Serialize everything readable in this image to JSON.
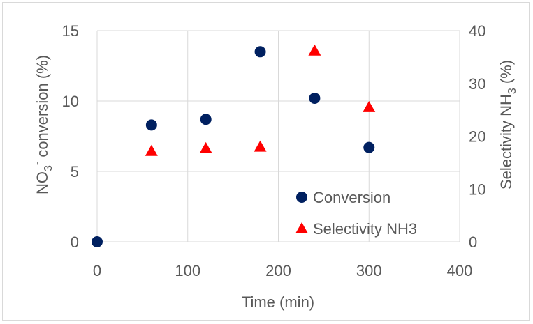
{
  "chart_data": {
    "type": "scatter",
    "x_axis": {
      "label": "Time (min)",
      "range": [
        0,
        400
      ],
      "ticks": [
        "0",
        "100",
        "200",
        "300",
        "400"
      ]
    },
    "y_axis_left": {
      "label_prefix": "NO",
      "label_sub": "3",
      "label_sup": "-",
      "label_suffix": " conversion (%)",
      "range": [
        0,
        15
      ],
      "ticks": [
        "0",
        "5",
        "10",
        "15"
      ]
    },
    "y_axis_right": {
      "label_prefix": "Selectivity NH",
      "label_sub": "3",
      "label_suffix": " (%)",
      "range": [
        0,
        40
      ],
      "ticks": [
        "0",
        "10",
        "20",
        "30",
        "40"
      ]
    },
    "grid": true,
    "legend_position": "bottom-right",
    "series": [
      {
        "name": "Conversion",
        "axis": "left",
        "marker": "circle",
        "color": "#002060",
        "x": [
          0,
          60,
          120,
          180,
          240,
          300
        ],
        "y": [
          0,
          8.3,
          8.7,
          13.5,
          10.2,
          6.7
        ]
      },
      {
        "name": "Selectivity NH3",
        "axis": "right",
        "marker": "triangle",
        "color": "#ff0000",
        "x": [
          60,
          120,
          180,
          240,
          300
        ],
        "y": [
          17.2,
          17.7,
          18.0,
          36.2,
          25.5
        ]
      }
    ]
  }
}
